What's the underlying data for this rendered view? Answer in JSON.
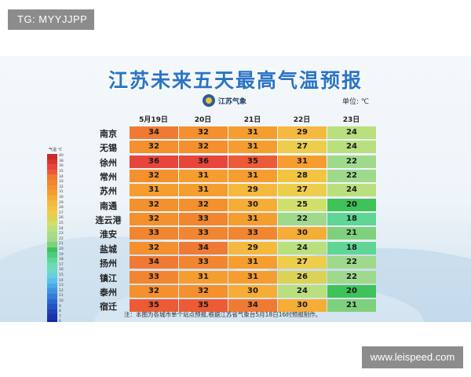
{
  "watermark_tag": "TG: MYYJJPP",
  "website": "www.leispeed.com",
  "title": "江苏未来五天最高气温预报",
  "logo_text": "江苏气象",
  "unit": "单位: ℃",
  "dates": [
    "5月19日",
    "20日",
    "21日",
    "22日",
    "23日"
  ],
  "cities": [
    "南京",
    "无锡",
    "徐州",
    "常州",
    "苏州",
    "南通",
    "连云港",
    "淮安",
    "盐城",
    "扬州",
    "镇江",
    "泰州",
    "宿迁"
  ],
  "temps": [
    [
      34,
      32,
      31,
      29,
      24
    ],
    [
      32,
      32,
      31,
      27,
      24
    ],
    [
      36,
      36,
      35,
      31,
      22
    ],
    [
      32,
      31,
      31,
      28,
      22
    ],
    [
      31,
      31,
      29,
      27,
      24
    ],
    [
      32,
      32,
      30,
      25,
      20
    ],
    [
      32,
      33,
      31,
      22,
      18
    ],
    [
      33,
      33,
      33,
      30,
      21
    ],
    [
      32,
      34,
      29,
      24,
      18
    ],
    [
      34,
      33,
      31,
      27,
      22
    ],
    [
      33,
      31,
      31,
      26,
      22
    ],
    [
      32,
      32,
      30,
      24,
      20
    ],
    [
      35,
      35,
      34,
      30,
      21
    ]
  ],
  "scale_unit": "气温 ℃",
  "scale_labels": [
    "40",
    "38",
    "36",
    "35",
    "34",
    "33",
    "32",
    "31",
    "30",
    "29",
    "28",
    "27",
    "26",
    "25",
    "24",
    "23",
    "22",
    "21",
    "20",
    "19",
    "18",
    "17",
    "16",
    "15",
    "14",
    "13",
    "12",
    "11",
    "10",
    "9",
    "8",
    "7",
    "6",
    "5",
    "4",
    "3",
    "2"
  ],
  "colors": {
    "36": "#e8453c",
    "35": "#ec5a36",
    "34": "#f07a33",
    "33": "#f2852f",
    "32": "#f4902e",
    "31": "#f59e2f",
    "30": "#f6ad35",
    "29": "#f5b93d",
    "28": "#f2c541",
    "27": "#ecce4c",
    "26": "#dcd356",
    "25": "#cfe06a",
    "24": "#b9df7f",
    "22": "#9fd98c",
    "21": "#7fd07c",
    "20": "#3fc25a",
    "18": "#5fd596"
  },
  "note": "注：本图为各城市单个站点预报,根据江苏省气象台5月18日16时预报制作。"
}
